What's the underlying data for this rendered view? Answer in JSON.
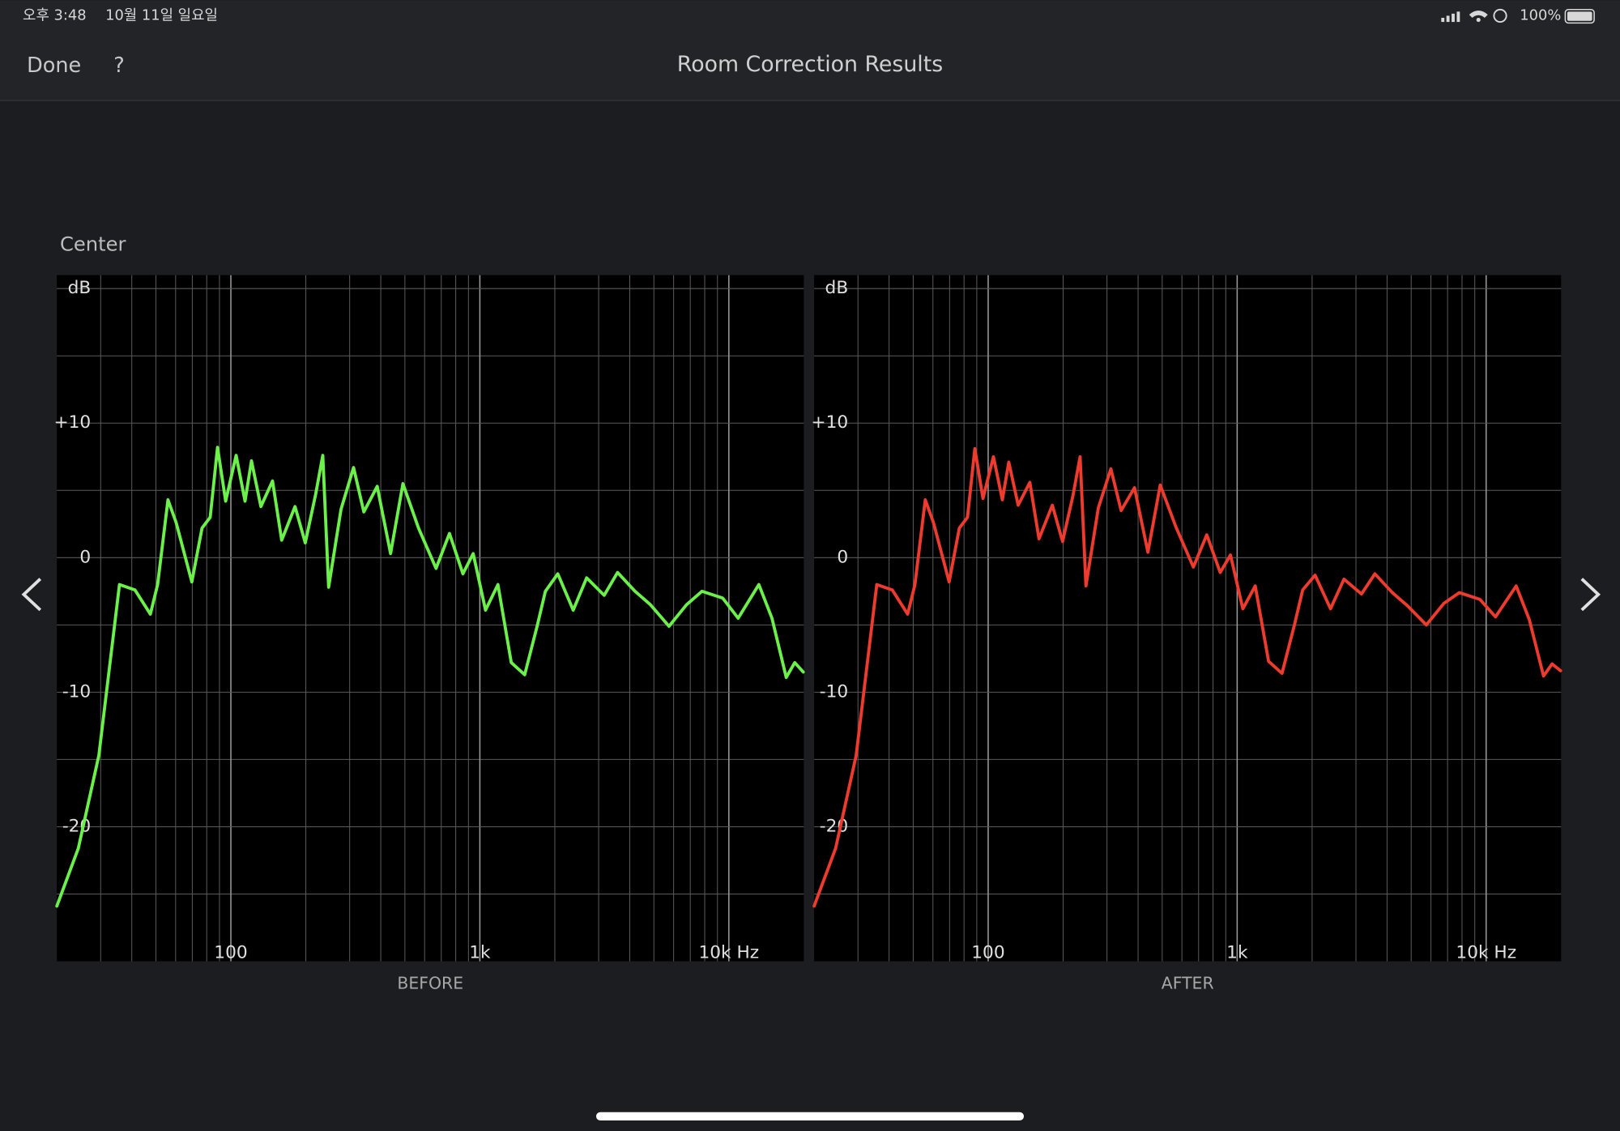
{
  "status_bar": {
    "time": "오후 3:48",
    "date": "10월 11일 일요일",
    "battery": "100%"
  },
  "nav": {
    "done": "Done",
    "help": "?",
    "title": "Room Correction Results"
  },
  "section": "Center",
  "chart_data": [
    {
      "type": "line",
      "title": "BEFORE",
      "color": "#6cf04a",
      "log_x": true,
      "grid": true,
      "xlim": [
        20,
        20000
      ],
      "xticks": [
        {
          "value": 100,
          "label": "100"
        },
        {
          "value": 1000,
          "label": "1k"
        },
        {
          "value": 10000,
          "label": "10k Hz"
        }
      ],
      "minor_xticks": [
        30,
        40,
        50,
        60,
        70,
        80,
        90,
        200,
        300,
        400,
        500,
        600,
        700,
        800,
        900,
        2000,
        3000,
        4000,
        5000,
        6000,
        7000,
        8000,
        9000
      ],
      "ylim": [
        -30,
        21
      ],
      "yticks": [
        {
          "value": 20,
          "label": "dB"
        },
        {
          "value": 10,
          "label": "+10"
        },
        0,
        -10,
        -20
      ],
      "minor_yticks": [
        15,
        5,
        -5,
        -15,
        -25
      ],
      "x": [
        20,
        24.4,
        29.5,
        35.7,
        41.2,
        47.5,
        50.8,
        55.9,
        60.3,
        69.7,
        76.6,
        82.6,
        88.4,
        95.3,
        105,
        114,
        121,
        132,
        147,
        160,
        181,
        199,
        219,
        234,
        247,
        277,
        311,
        342,
        387,
        438,
        491,
        567,
        667,
        755,
        855,
        940,
        1054,
        1182,
        1337,
        1514,
        1698,
        1833,
        2056,
        2371,
        2685,
        3157,
        3573,
        4200,
        4845,
        5750,
        6760,
        7800,
        9440,
        10900,
        13200,
        14900,
        17000,
        18400,
        19900
      ],
      "values": [
        -25.9,
        -21.6,
        -14.7,
        -2,
        -2.4,
        -4.2,
        -2,
        4.3,
        2.6,
        -1.8,
        2.2,
        3,
        8.2,
        4.2,
        7.6,
        4.2,
        7.2,
        3.8,
        5.7,
        1.3,
        3.8,
        1.1,
        4.7,
        7.6,
        -2.2,
        3.6,
        6.7,
        3.4,
        5.3,
        0.3,
        5.5,
        2.2,
        -0.8,
        1.8,
        -1.2,
        0.3,
        -3.9,
        -2,
        -7.8,
        -8.7,
        -5.1,
        -2.5,
        -1.2,
        -3.9,
        -1.5,
        -2.8,
        -1.1,
        -2.5,
        -3.5,
        -5.1,
        -3.5,
        -2.5,
        -3,
        -4.5,
        -2,
        -4.5,
        -8.9,
        -7.8,
        -8.5
      ]
    },
    {
      "type": "line",
      "title": "AFTER",
      "color": "#ef3a2e",
      "log_x": true,
      "grid": true,
      "xlim": [
        20,
        20000
      ],
      "xticks": [
        {
          "value": 100,
          "label": "100"
        },
        {
          "value": 1000,
          "label": "1k"
        },
        {
          "value": 10000,
          "label": "10k Hz"
        }
      ],
      "minor_xticks": [
        30,
        40,
        50,
        60,
        70,
        80,
        90,
        200,
        300,
        400,
        500,
        600,
        700,
        800,
        900,
        2000,
        3000,
        4000,
        5000,
        6000,
        7000,
        8000,
        9000
      ],
      "ylim": [
        -30,
        21
      ],
      "yticks": [
        {
          "value": 20,
          "label": "dB"
        },
        {
          "value": 10,
          "label": "+10"
        },
        0,
        -10,
        -20
      ],
      "minor_yticks": [
        15,
        5,
        -5,
        -15,
        -25
      ],
      "x": [
        20,
        24.4,
        29.5,
        35.7,
        41.2,
        47.5,
        50.8,
        55.9,
        60.3,
        69.7,
        76.6,
        82.6,
        88.4,
        95.3,
        105,
        114,
        121,
        132,
        147,
        160,
        181,
        199,
        219,
        234,
        247,
        277,
        311,
        342,
        387,
        438,
        491,
        567,
        667,
        755,
        855,
        940,
        1054,
        1182,
        1337,
        1514,
        1698,
        1833,
        2056,
        2371,
        2685,
        3157,
        3573,
        4200,
        4845,
        5750,
        6760,
        7800,
        9440,
        10900,
        13200,
        14900,
        17000,
        18400,
        19900
      ],
      "values": [
        -25.9,
        -21.6,
        -14.7,
        -2,
        -2.4,
        -4.2,
        -2,
        4.3,
        2.6,
        -1.8,
        2.2,
        3,
        8.1,
        4.4,
        7.5,
        4.3,
        7.1,
        3.9,
        5.6,
        1.4,
        3.9,
        1.2,
        4.6,
        7.5,
        -2.1,
        3.7,
        6.6,
        3.5,
        5.2,
        0.4,
        5.4,
        2.3,
        -0.7,
        1.7,
        -1.1,
        0.2,
        -3.8,
        -2.1,
        -7.7,
        -8.6,
        -5,
        -2.4,
        -1.3,
        -3.8,
        -1.6,
        -2.7,
        -1.2,
        -2.6,
        -3.6,
        -5,
        -3.4,
        -2.6,
        -3.1,
        -4.4,
        -2.1,
        -4.6,
        -8.8,
        -7.9,
        -8.4
      ]
    }
  ]
}
